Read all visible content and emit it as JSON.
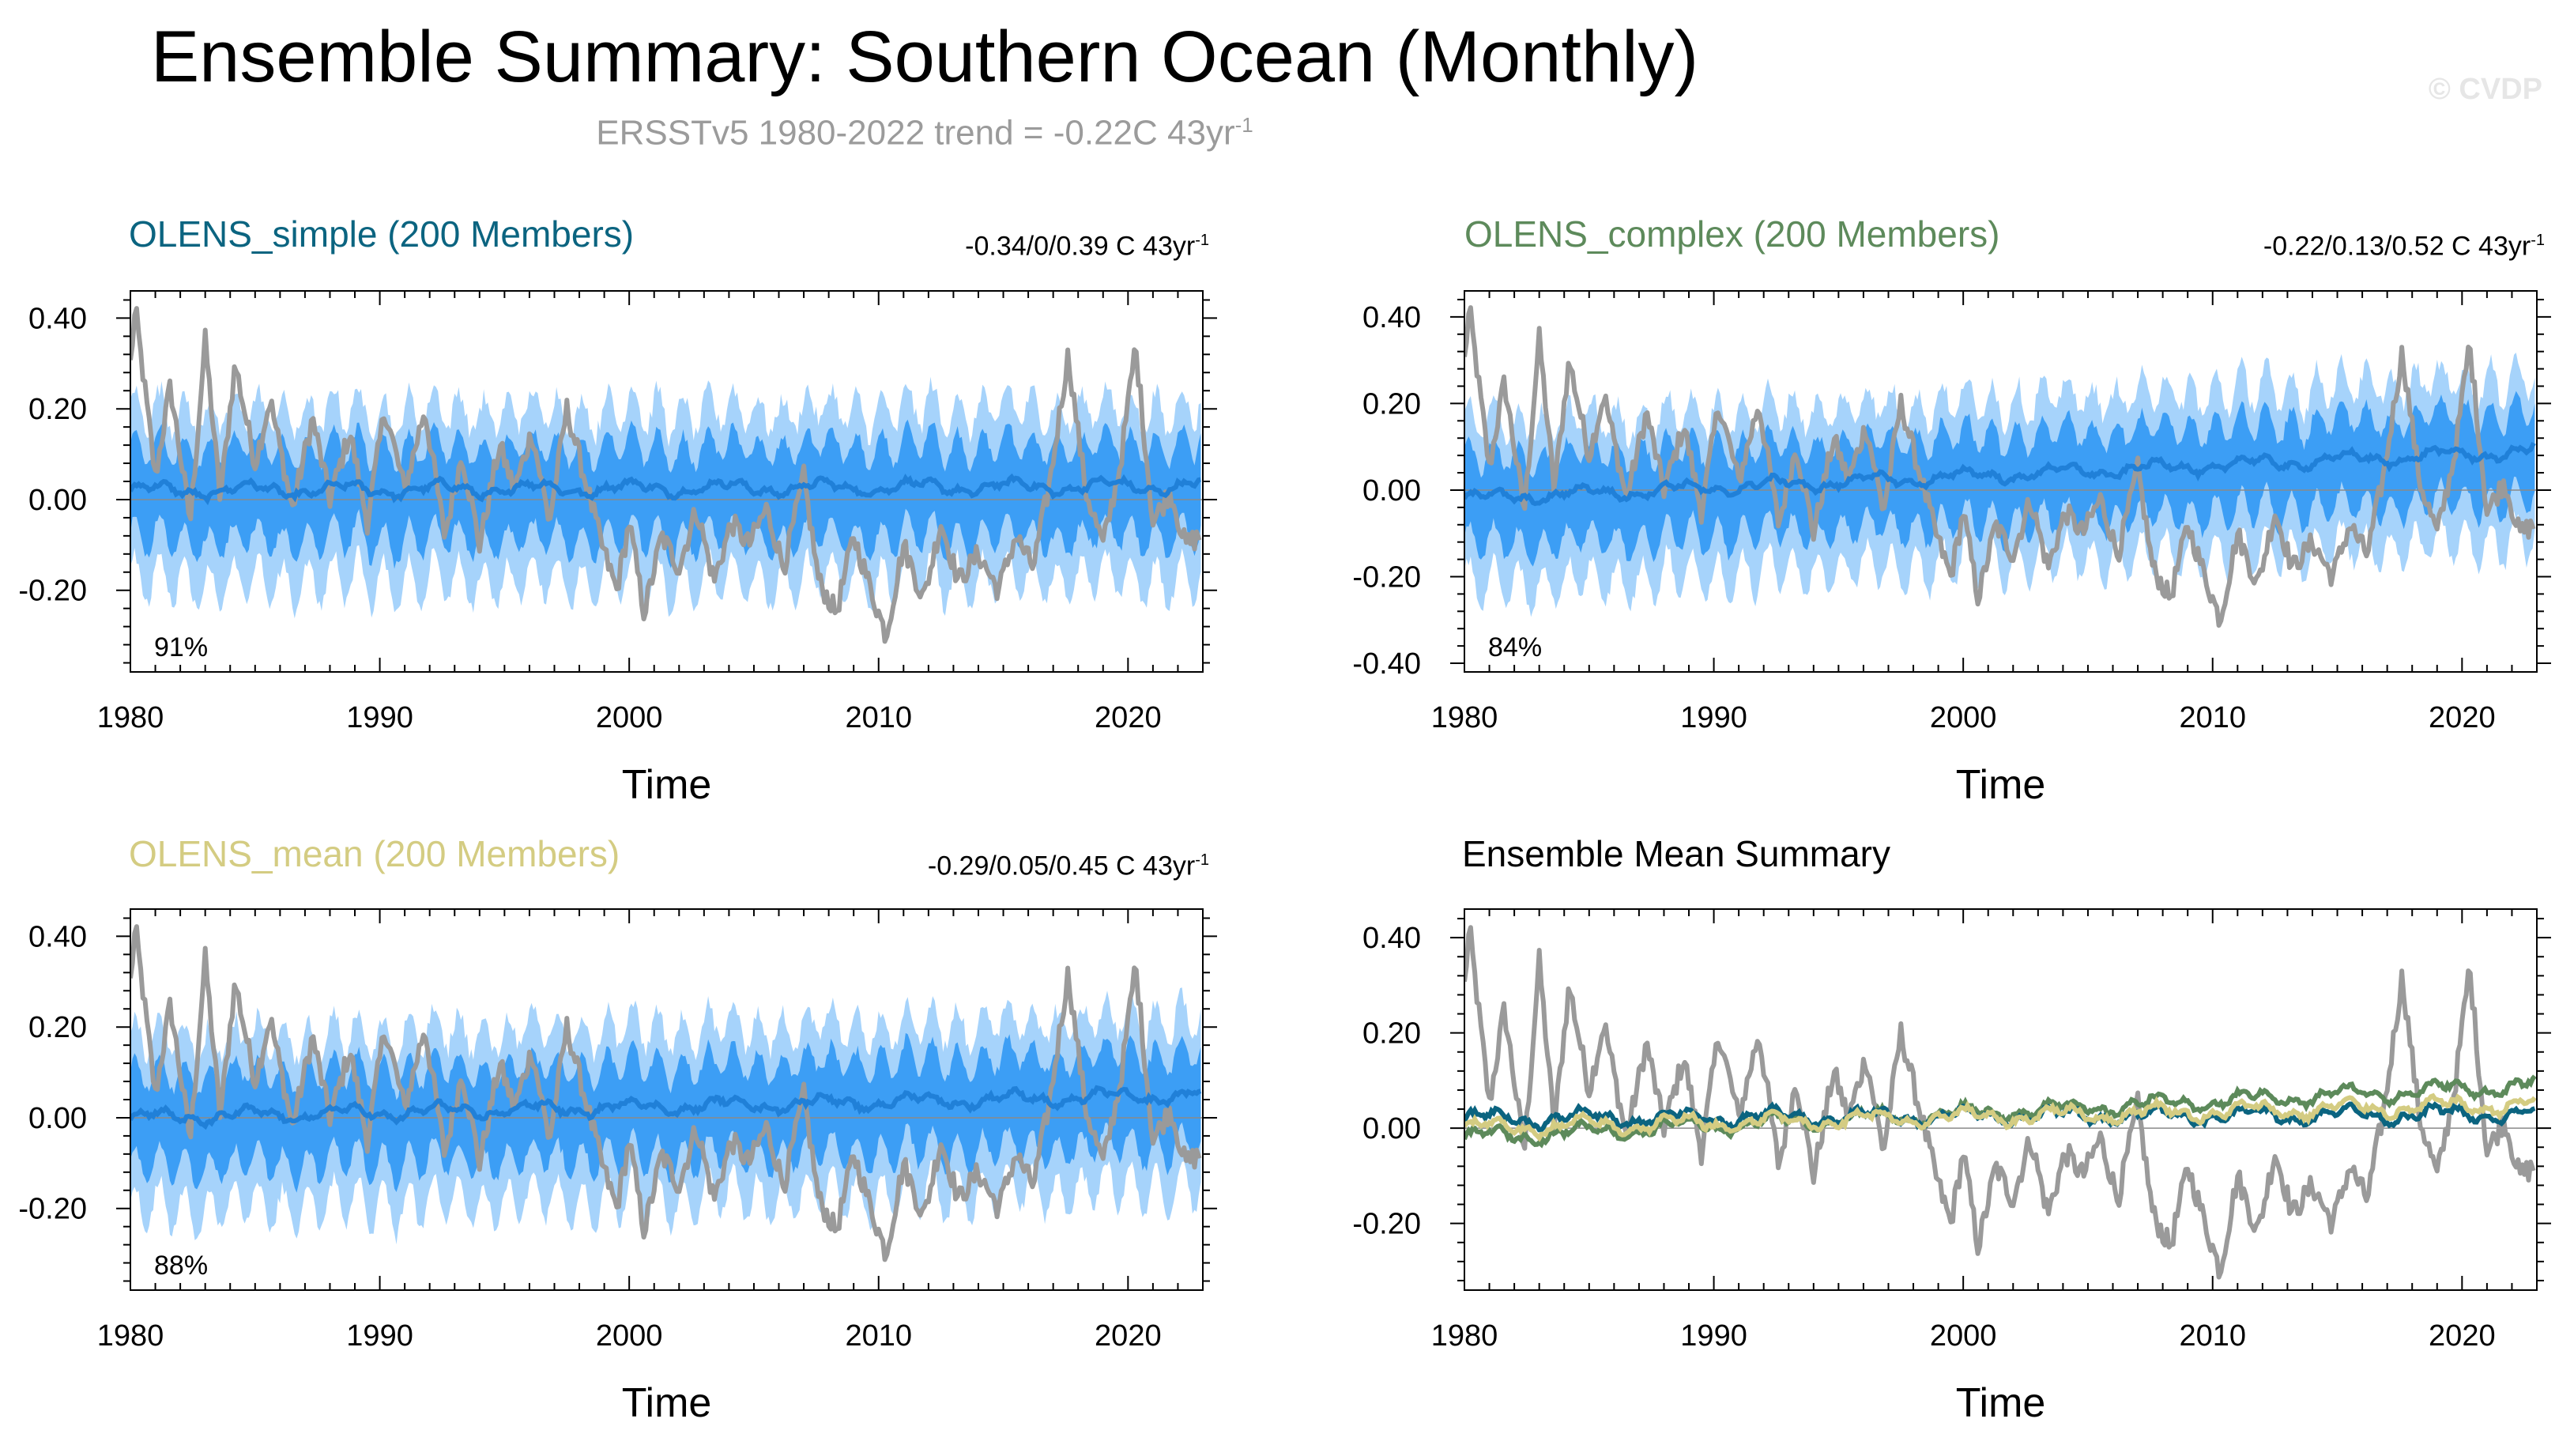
{
  "header": {
    "title": "Ensemble Summary: Southern Ocean (Monthly)",
    "subtitle_main": "ERSSTv5 1980-2022 trend = -0.22C 43yr",
    "subtitle_sup": "-1",
    "watermark": "© CVDP"
  },
  "colors": {
    "obs": "#9a9a9a",
    "band_outer": "#a6d3fb",
    "band_inner": "#3c9ef5",
    "mean_line": "#2080d8",
    "simple": "#0b6480",
    "complex": "#5d8a5b",
    "mean_model": "#d4cc82"
  },
  "chart_data": [
    {
      "type": "line",
      "title": "OLENS_simple (200 Members)",
      "trend_text": "-0.34/0/0.39 C 43yr",
      "trend_sup": "-1",
      "percent_label": "91%",
      "xlabel": "Time",
      "ylabel": "",
      "xlim": [
        1980,
        2023
      ],
      "ylim": [
        -0.38,
        0.46
      ],
      "xticks": [
        "1980",
        "1990",
        "2000",
        "2010",
        "2020"
      ],
      "yticks": [
        "-0.20",
        "0.00",
        "0.20",
        "0.40"
      ],
      "ensemble_mean_start": 0.02,
      "ensemble_mean_end": 0.03,
      "series_name": "ensemble range"
    },
    {
      "type": "line",
      "title": "OLENS_complex (200 Members)",
      "trend_text": "-0.22/0.13/0.52 C 43yr",
      "trend_sup": "-1",
      "percent_label": "84%",
      "xlabel": "Time",
      "ylabel": "",
      "xlim": [
        1980,
        2023
      ],
      "ylim": [
        -0.42,
        0.46
      ],
      "xticks": [
        "1980",
        "1990",
        "2000",
        "2010",
        "2020"
      ],
      "yticks": [
        "-0.40",
        "-0.20",
        "0.00",
        "0.20",
        "0.40"
      ],
      "ensemble_mean_start": -0.02,
      "ensemble_mean_end": 0.09,
      "series_name": "ensemble range"
    },
    {
      "type": "line",
      "title": "OLENS_mean (200 Members)",
      "trend_text": "-0.29/0.05/0.45 C 43yr",
      "trend_sup": "-1",
      "percent_label": "88%",
      "xlabel": "Time",
      "ylabel": "",
      "xlim": [
        1980,
        2023
      ],
      "ylim": [
        -0.38,
        0.46
      ],
      "xticks": [
        "1980",
        "1990",
        "2000",
        "2010",
        "2020"
      ],
      "yticks": [
        "-0.20",
        "0.00",
        "0.20",
        "0.40"
      ],
      "ensemble_mean_start": 0.0,
      "ensemble_mean_end": 0.05,
      "series_name": "ensemble range"
    },
    {
      "type": "line",
      "title": "Ensemble Mean Summary",
      "xlabel": "Time",
      "ylabel": "",
      "xlim": [
        1980,
        2023
      ],
      "ylim": [
        -0.34,
        0.46
      ],
      "xticks": [
        "1980",
        "1990",
        "2000",
        "2010",
        "2020"
      ],
      "yticks": [
        "-0.20",
        "0.00",
        "0.20",
        "0.40"
      ],
      "series": [
        {
          "name": "OLENS_simple",
          "start": 0.02,
          "end": 0.03
        },
        {
          "name": "OLENS_complex",
          "start": -0.02,
          "end": 0.09
        },
        {
          "name": "OLENS_mean",
          "start": 0.0,
          "end": 0.05
        }
      ]
    }
  ],
  "observed_anchors": {
    "name": "ERSSTv5",
    "x": [
      1980.0,
      1980.2,
      1980.5,
      1981.0,
      1981.6,
      1982.4,
      1983.0,
      1983.6,
      1984.2,
      1985.0,
      1985.6,
      1986.5,
      1987.3,
      1988.0,
      1988.8,
      1989.5,
      1990.2,
      1991.0,
      1991.8,
      1992.6,
      1993.3,
      1994.0,
      1994.8,
      1995.4,
      1996.1,
      1996.8,
      1997.5,
      1998.2,
      1998.9,
      1999.5,
      2000.0,
      2000.6,
      2001.3,
      2002.0,
      2002.7,
      2003.4,
      2004.1,
      2004.8,
      2005.5,
      2006.2,
      2007.0,
      2007.6,
      2008.3,
      2009.0,
      2009.7,
      2010.3,
      2011.0,
      2011.8,
      2012.5,
      2013.2,
      2014.0,
      2014.8,
      2015.5,
      2016.2,
      2016.9,
      2017.6,
      2018.3,
      2019.0,
      2019.7,
      2020.3,
      2021.0,
      2021.7,
      2022.3,
      2022.9
    ],
    "y": [
      0.3,
      0.42,
      0.28,
      0.05,
      0.25,
      -0.05,
      0.35,
      0.0,
      0.3,
      0.08,
      0.22,
      -0.02,
      0.18,
      0.0,
      0.15,
      -0.05,
      0.2,
      0.02,
      0.2,
      -0.08,
      0.1,
      -0.1,
      0.12,
      0.02,
      0.15,
      -0.05,
      0.2,
      0.05,
      -0.1,
      -0.2,
      -0.05,
      -0.25,
      -0.08,
      -0.15,
      -0.02,
      -0.18,
      -0.05,
      -0.1,
      -0.02,
      -0.15,
      0.05,
      -0.18,
      -0.25,
      -0.08,
      -0.2,
      -0.3,
      -0.1,
      -0.22,
      -0.05,
      -0.18,
      -0.12,
      -0.2,
      -0.08,
      -0.15,
      0.05,
      0.32,
      0.02,
      -0.1,
      0.08,
      0.34,
      -0.05,
      0.02,
      -0.1,
      -0.08
    ]
  }
}
